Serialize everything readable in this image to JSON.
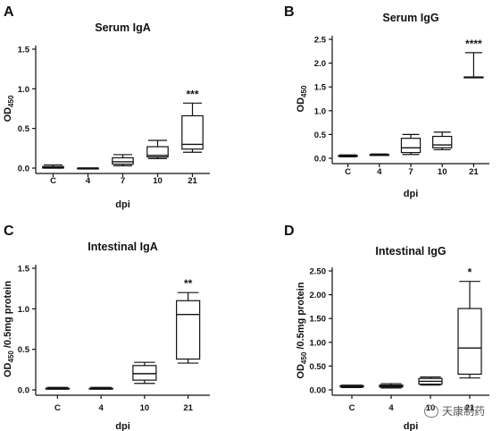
{
  "chart_data": [
    {
      "type": "box",
      "panel": "A",
      "title": "Serum IgA",
      "xlabel": "dpi",
      "ylabel": "OD",
      "ylabel_sub": "450",
      "ylim": [
        0,
        1.5
      ],
      "yticks": [
        "0.0",
        "0.5",
        "1.0",
        "1.5"
      ],
      "yticks_values": [
        0.0,
        0.5,
        1.0,
        1.5
      ],
      "categories": [
        "C",
        "4",
        "7",
        "10",
        "21"
      ],
      "boxes": [
        {
          "min": 0.0,
          "q1": 0.0,
          "median": 0.01,
          "q3": 0.02,
          "max": 0.04
        },
        {
          "min": -0.01,
          "q1": -0.01,
          "median": 0.0,
          "q3": 0.0,
          "max": 0.0
        },
        {
          "min": 0.03,
          "q1": 0.05,
          "median": 0.08,
          "q3": 0.13,
          "max": 0.17
        },
        {
          "min": 0.12,
          "q1": 0.14,
          "median": 0.16,
          "q3": 0.27,
          "max": 0.35
        },
        {
          "min": 0.2,
          "q1": 0.24,
          "median": 0.3,
          "q3": 0.66,
          "max": 0.82
        }
      ],
      "significance": [
        {
          "category": "21",
          "label": "***"
        }
      ]
    },
    {
      "type": "box",
      "panel": "B",
      "title": "Serum IgG",
      "xlabel": "dpi",
      "ylabel": "OD",
      "ylabel_sub": "450",
      "ylim": [
        0,
        2.5
      ],
      "yticks": [
        "0.0",
        "0.5",
        "1.0",
        "1.5",
        "2.0",
        "2.5"
      ],
      "yticks_values": [
        0.0,
        0.5,
        1.0,
        1.5,
        2.0,
        2.5
      ],
      "categories": [
        "C",
        "4",
        "7",
        "10",
        "21"
      ],
      "boxes": [
        {
          "min": 0.03,
          "q1": 0.04,
          "median": 0.05,
          "q3": 0.06,
          "max": 0.07
        },
        {
          "min": 0.06,
          "q1": 0.06,
          "median": 0.07,
          "q3": 0.08,
          "max": 0.09
        },
        {
          "min": 0.08,
          "q1": 0.12,
          "median": 0.22,
          "q3": 0.42,
          "max": 0.5
        },
        {
          "min": 0.18,
          "q1": 0.22,
          "median": 0.28,
          "q3": 0.46,
          "max": 0.55
        },
        {
          "min": 1.7,
          "q1": 1.7,
          "median": 1.7,
          "q3": 1.71,
          "max": 2.22
        }
      ],
      "significance": [
        {
          "category": "21",
          "label": "****"
        }
      ]
    },
    {
      "type": "box",
      "panel": "C",
      "title": "Intestinal IgA",
      "xlabel": "dpi",
      "ylabel": "OD",
      "ylabel_sub": "450",
      "ylabel_suffix": "/0.5mg protein",
      "ylim": [
        0,
        1.5
      ],
      "yticks": [
        "0.0",
        "0.5",
        "1.0",
        "1.5"
      ],
      "yticks_values": [
        0.0,
        0.5,
        1.0,
        1.5
      ],
      "categories": [
        "C",
        "4",
        "10",
        "21"
      ],
      "boxes": [
        {
          "min": 0.01,
          "q1": 0.01,
          "median": 0.02,
          "q3": 0.02,
          "max": 0.03
        },
        {
          "min": 0.01,
          "q1": 0.01,
          "median": 0.02,
          "q3": 0.02,
          "max": 0.03
        },
        {
          "min": 0.08,
          "q1": 0.12,
          "median": 0.2,
          "q3": 0.3,
          "max": 0.34
        },
        {
          "min": 0.33,
          "q1": 0.38,
          "median": 0.93,
          "q3": 1.1,
          "max": 1.2
        }
      ],
      "significance": [
        {
          "category": "21",
          "label": "**"
        }
      ]
    },
    {
      "type": "box",
      "panel": "D",
      "title": "Intestinal IgG",
      "xlabel": "dpi",
      "ylabel": "OD",
      "ylabel_sub": "450",
      "ylabel_suffix": "/0.5mg protein",
      "ylim": [
        0,
        2.5
      ],
      "yticks": [
        "0.00",
        "0.50",
        "1.00",
        "1.50",
        "2.00",
        "2.50"
      ],
      "yticks_values": [
        0.0,
        0.5,
        1.0,
        1.5,
        2.0,
        2.5
      ],
      "categories": [
        "C",
        "4",
        "10",
        "21"
      ],
      "boxes": [
        {
          "min": 0.05,
          "q1": 0.06,
          "median": 0.07,
          "q3": 0.09,
          "max": 0.1
        },
        {
          "min": 0.04,
          "q1": 0.06,
          "median": 0.08,
          "q3": 0.1,
          "max": 0.13
        },
        {
          "min": 0.1,
          "q1": 0.12,
          "median": 0.18,
          "q3": 0.24,
          "max": 0.27
        },
        {
          "min": 0.25,
          "q1": 0.33,
          "median": 0.88,
          "q3": 1.71,
          "max": 2.28
        }
      ],
      "significance": [
        {
          "category": "21",
          "label": "*"
        }
      ]
    }
  ],
  "watermark": {
    "text": "天康制药"
  }
}
